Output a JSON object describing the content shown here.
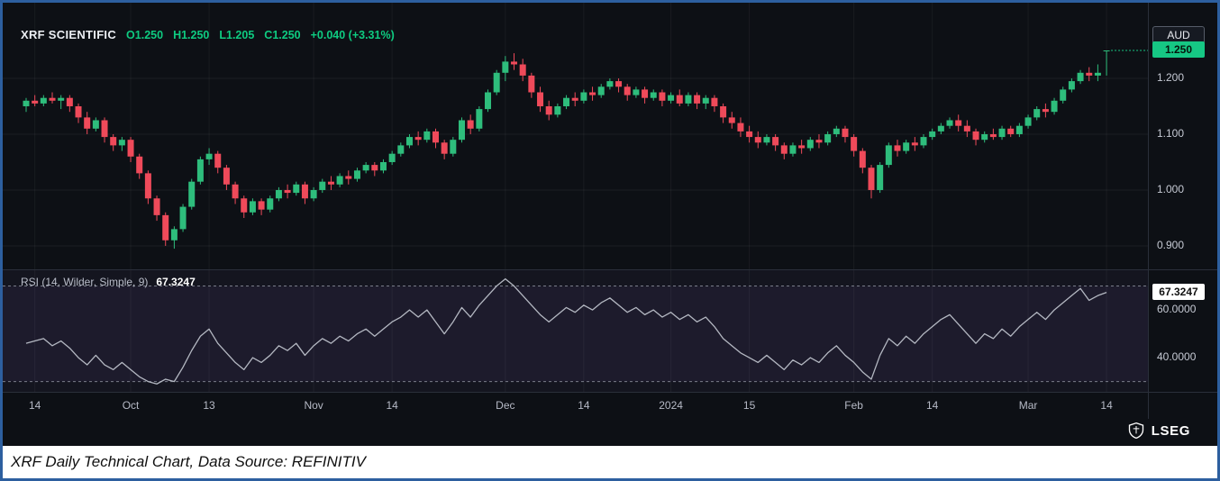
{
  "legend": {
    "symbol": "XRF SCIENTIFIC",
    "open": "O1.250",
    "high": "H1.250",
    "low": "L1.205",
    "close": "C1.250",
    "change": "+0.040 (+3.31%)"
  },
  "rsi_label": {
    "name": "RSI (14, Wilder, Simple, 9)",
    "value": "67.3247"
  },
  "price_axis": {
    "currency": "AUD",
    "last_price": "1.250",
    "labels": [
      "1.200",
      "1.100",
      "1.000",
      "0.900"
    ],
    "rsi_value": "67.3247",
    "rsi_labels": [
      "60.0000",
      "40.0000"
    ]
  },
  "branding": {
    "logo_text": "LSEG"
  },
  "caption": "XRF Daily Technical Chart, Data Source: REFINITIV",
  "colors": {
    "up": "#2ebd7c",
    "down": "#ef4a5a",
    "accent_green": "#0ecb81",
    "badge_green": "#16c784",
    "rsi_line": "#b4b8c2",
    "border_blue": "#2d5f9f"
  },
  "chart_data": [
    {
      "type": "candlestick",
      "symbol": "XRF SCIENTIFIC",
      "currency": "AUD",
      "interval": "Daily",
      "ylim": [
        0.858,
        1.3355
      ],
      "gridlines": [
        1.2,
        1.1,
        1.0,
        0.9
      ],
      "last": {
        "open": 1.25,
        "high": 1.25,
        "low": 1.205,
        "close": 1.25,
        "change": 0.04,
        "change_pct": 3.31
      },
      "x_ticks": [
        {
          "label": "14",
          "i": 1
        },
        {
          "label": "Oct",
          "i": 12
        },
        {
          "label": "13",
          "i": 21
        },
        {
          "label": "Nov",
          "i": 33
        },
        {
          "label": "14",
          "i": 42
        },
        {
          "label": "Dec",
          "i": 55
        },
        {
          "label": "14",
          "i": 64
        },
        {
          "label": "2024",
          "i": 74
        },
        {
          "label": "15",
          "i": 83
        },
        {
          "label": "Feb",
          "i": 95
        },
        {
          "label": "14",
          "i": 104
        },
        {
          "label": "Mar",
          "i": 115
        },
        {
          "label": "14",
          "i": 124
        }
      ],
      "ohlc": [
        [
          1.15,
          1.165,
          1.14,
          1.16
        ],
        [
          1.16,
          1.17,
          1.15,
          1.155
        ],
        [
          1.155,
          1.17,
          1.15,
          1.165
        ],
        [
          1.165,
          1.175,
          1.155,
          1.16
        ],
        [
          1.16,
          1.17,
          1.145,
          1.165
        ],
        [
          1.165,
          1.17,
          1.14,
          1.15
        ],
        [
          1.15,
          1.155,
          1.12,
          1.13
        ],
        [
          1.13,
          1.14,
          1.1,
          1.11
        ],
        [
          1.11,
          1.13,
          1.105,
          1.125
        ],
        [
          1.125,
          1.13,
          1.085,
          1.095
        ],
        [
          1.095,
          1.1,
          1.07,
          1.08
        ],
        [
          1.08,
          1.095,
          1.07,
          1.09
        ],
        [
          1.09,
          1.095,
          1.05,
          1.06
        ],
        [
          1.06,
          1.065,
          1.02,
          1.03
        ],
        [
          1.03,
          1.035,
          0.975,
          0.985
        ],
        [
          0.985,
          0.99,
          0.945,
          0.955
        ],
        [
          0.955,
          0.96,
          0.9,
          0.91
        ],
        [
          0.91,
          0.935,
          0.895,
          0.93
        ],
        [
          0.93,
          0.975,
          0.925,
          0.97
        ],
        [
          0.97,
          1.02,
          0.965,
          1.015
        ],
        [
          1.015,
          1.06,
          1.01,
          1.055
        ],
        [
          1.055,
          1.075,
          1.045,
          1.065
        ],
        [
          1.065,
          1.07,
          1.03,
          1.04
        ],
        [
          1.04,
          1.045,
          1.0,
          1.01
        ],
        [
          1.01,
          1.015,
          0.975,
          0.985
        ],
        [
          0.985,
          0.99,
          0.95,
          0.96
        ],
        [
          0.96,
          0.985,
          0.955,
          0.98
        ],
        [
          0.98,
          0.985,
          0.955,
          0.965
        ],
        [
          0.965,
          0.99,
          0.96,
          0.985
        ],
        [
          0.985,
          1.005,
          0.98,
          1.0
        ],
        [
          1.0,
          1.01,
          0.985,
          0.995
        ],
        [
          0.995,
          1.015,
          0.99,
          1.01
        ],
        [
          1.01,
          1.015,
          0.975,
          0.985
        ],
        [
          0.985,
          1.005,
          0.98,
          1.0
        ],
        [
          1.0,
          1.02,
          0.995,
          1.015
        ],
        [
          1.015,
          1.025,
          1.0,
          1.01
        ],
        [
          1.01,
          1.03,
          1.005,
          1.025
        ],
        [
          1.025,
          1.035,
          1.01,
          1.02
        ],
        [
          1.02,
          1.04,
          1.015,
          1.035
        ],
        [
          1.035,
          1.05,
          1.03,
          1.045
        ],
        [
          1.045,
          1.05,
          1.025,
          1.035
        ],
        [
          1.035,
          1.055,
          1.03,
          1.05
        ],
        [
          1.05,
          1.07,
          1.045,
          1.065
        ],
        [
          1.065,
          1.085,
          1.06,
          1.08
        ],
        [
          1.08,
          1.1,
          1.075,
          1.095
        ],
        [
          1.095,
          1.105,
          1.08,
          1.09
        ],
        [
          1.09,
          1.11,
          1.085,
          1.105
        ],
        [
          1.105,
          1.11,
          1.075,
          1.085
        ],
        [
          1.085,
          1.09,
          1.055,
          1.065
        ],
        [
          1.065,
          1.095,
          1.06,
          1.09
        ],
        [
          1.09,
          1.13,
          1.085,
          1.125
        ],
        [
          1.125,
          1.135,
          1.1,
          1.11
        ],
        [
          1.11,
          1.15,
          1.105,
          1.145
        ],
        [
          1.145,
          1.18,
          1.14,
          1.175
        ],
        [
          1.175,
          1.215,
          1.17,
          1.21
        ],
        [
          1.21,
          1.24,
          1.195,
          1.23
        ],
        [
          1.23,
          1.245,
          1.215,
          1.225
        ],
        [
          1.225,
          1.235,
          1.195,
          1.205
        ],
        [
          1.205,
          1.21,
          1.165,
          1.175
        ],
        [
          1.175,
          1.185,
          1.14,
          1.15
        ],
        [
          1.15,
          1.16,
          1.125,
          1.135
        ],
        [
          1.135,
          1.155,
          1.13,
          1.15
        ],
        [
          1.15,
          1.17,
          1.145,
          1.165
        ],
        [
          1.165,
          1.175,
          1.15,
          1.16
        ],
        [
          1.16,
          1.18,
          1.155,
          1.175
        ],
        [
          1.175,
          1.185,
          1.16,
          1.17
        ],
        [
          1.17,
          1.19,
          1.165,
          1.185
        ],
        [
          1.185,
          1.2,
          1.18,
          1.195
        ],
        [
          1.195,
          1.2,
          1.175,
          1.185
        ],
        [
          1.185,
          1.19,
          1.16,
          1.17
        ],
        [
          1.17,
          1.185,
          1.165,
          1.18
        ],
        [
          1.18,
          1.185,
          1.155,
          1.165
        ],
        [
          1.165,
          1.18,
          1.16,
          1.175
        ],
        [
          1.175,
          1.18,
          1.15,
          1.16
        ],
        [
          1.16,
          1.175,
          1.155,
          1.17
        ],
        [
          1.17,
          1.18,
          1.15,
          1.155
        ],
        [
          1.155,
          1.175,
          1.15,
          1.17
        ],
        [
          1.17,
          1.175,
          1.145,
          1.155
        ],
        [
          1.155,
          1.17,
          1.145,
          1.165
        ],
        [
          1.165,
          1.17,
          1.14,
          1.15
        ],
        [
          1.15,
          1.155,
          1.12,
          1.13
        ],
        [
          1.13,
          1.14,
          1.11,
          1.12
        ],
        [
          1.12,
          1.13,
          1.095,
          1.105
        ],
        [
          1.105,
          1.115,
          1.085,
          1.095
        ],
        [
          1.095,
          1.105,
          1.075,
          1.085
        ],
        [
          1.085,
          1.1,
          1.08,
          1.095
        ],
        [
          1.095,
          1.1,
          1.07,
          1.08
        ],
        [
          1.08,
          1.085,
          1.055,
          1.065
        ],
        [
          1.065,
          1.085,
          1.06,
          1.08
        ],
        [
          1.08,
          1.09,
          1.065,
          1.075
        ],
        [
          1.075,
          1.095,
          1.07,
          1.09
        ],
        [
          1.09,
          1.1,
          1.075,
          1.085
        ],
        [
          1.085,
          1.105,
          1.08,
          1.1
        ],
        [
          1.1,
          1.115,
          1.095,
          1.11
        ],
        [
          1.11,
          1.115,
          1.085,
          1.095
        ],
        [
          1.095,
          1.1,
          1.06,
          1.07
        ],
        [
          1.07,
          1.075,
          1.03,
          1.04
        ],
        [
          1.04,
          1.045,
          0.985,
          1.0
        ],
        [
          1.0,
          1.05,
          0.995,
          1.045
        ],
        [
          1.045,
          1.085,
          1.04,
          1.08
        ],
        [
          1.08,
          1.09,
          1.06,
          1.07
        ],
        [
          1.07,
          1.09,
          1.065,
          1.085
        ],
        [
          1.085,
          1.095,
          1.07,
          1.08
        ],
        [
          1.08,
          1.1,
          1.075,
          1.095
        ],
        [
          1.095,
          1.11,
          1.09,
          1.105
        ],
        [
          1.105,
          1.12,
          1.1,
          1.115
        ],
        [
          1.115,
          1.13,
          1.11,
          1.125
        ],
        [
          1.125,
          1.135,
          1.105,
          1.115
        ],
        [
          1.115,
          1.125,
          1.095,
          1.105
        ],
        [
          1.105,
          1.11,
          1.08,
          1.09
        ],
        [
          1.09,
          1.105,
          1.085,
          1.1
        ],
        [
          1.1,
          1.11,
          1.09,
          1.095
        ],
        [
          1.095,
          1.115,
          1.09,
          1.11
        ],
        [
          1.11,
          1.115,
          1.095,
          1.1
        ],
        [
          1.1,
          1.12,
          1.095,
          1.115
        ],
        [
          1.115,
          1.135,
          1.11,
          1.13
        ],
        [
          1.13,
          1.15,
          1.125,
          1.145
        ],
        [
          1.145,
          1.155,
          1.13,
          1.14
        ],
        [
          1.14,
          1.165,
          1.135,
          1.16
        ],
        [
          1.16,
          1.185,
          1.155,
          1.18
        ],
        [
          1.18,
          1.2,
          1.175,
          1.195
        ],
        [
          1.195,
          1.215,
          1.19,
          1.21
        ],
        [
          1.21,
          1.22,
          1.195,
          1.205
        ],
        [
          1.205,
          1.225,
          1.195,
          1.21
        ],
        [
          1.25,
          1.25,
          1.205,
          1.25
        ]
      ]
    },
    {
      "type": "line",
      "name": "RSI (14, Wilder, Simple, 9)",
      "last_value": 67.3247,
      "ylim": [
        25.7,
        77
      ],
      "bands": [
        70,
        30
      ],
      "axis_labels": [
        60,
        40
      ],
      "values": [
        46,
        47,
        48,
        45,
        47,
        44,
        40,
        37,
        41,
        37,
        35,
        38,
        35,
        32,
        30,
        29,
        31,
        30,
        36,
        43,
        49,
        52,
        46,
        42,
        38,
        35,
        40,
        38,
        41,
        45,
        43,
        46,
        41,
        45,
        48,
        46,
        49,
        47,
        50,
        52,
        49,
        52,
        55,
        57,
        60,
        57,
        60,
        55,
        50,
        55,
        61,
        57,
        62,
        66,
        70,
        73,
        70,
        66,
        62,
        58,
        55,
        58,
        61,
        59,
        62,
        60,
        63,
        65,
        62,
        59,
        61,
        58,
        60,
        57,
        59,
        56,
        58,
        55,
        57,
        53,
        48,
        45,
        42,
        40,
        38,
        41,
        38,
        35,
        39,
        37,
        40,
        38,
        42,
        45,
        41,
        38,
        34,
        31,
        41,
        48,
        45,
        49,
        46,
        50,
        53,
        56,
        58,
        54,
        50,
        46,
        50,
        48,
        52,
        49,
        53,
        56,
        59,
        56,
        60,
        63,
        66,
        69,
        64,
        66,
        67.3247
      ]
    }
  ]
}
